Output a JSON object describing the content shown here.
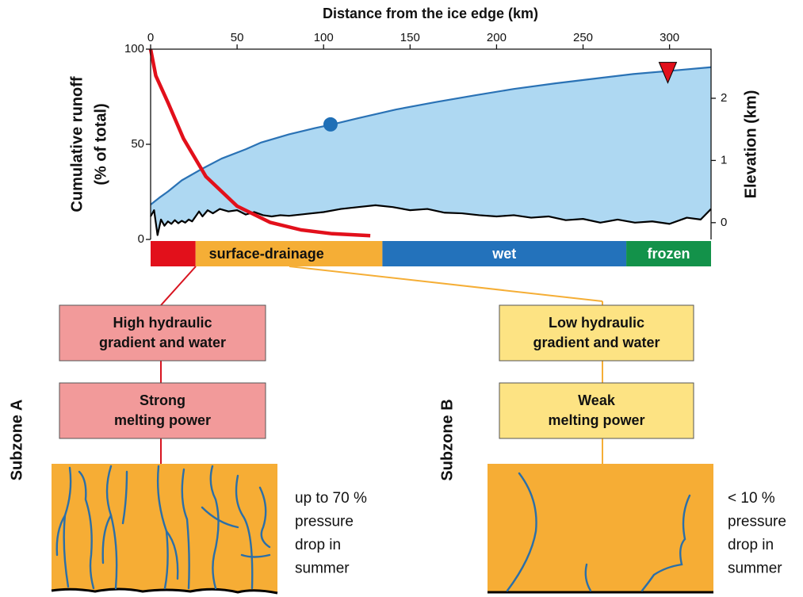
{
  "chart_data": {
    "type": "line",
    "title": "Distance from the ice edge (km)",
    "ylabel": [
      "Cumulative runoff",
      "(% of total)"
    ],
    "y2label": "Elevation (km)",
    "xlim": [
      0,
      324
    ],
    "xticks": [
      0,
      50,
      100,
      150,
      200,
      250,
      300
    ],
    "ylim": [
      0,
      100
    ],
    "yticks": [
      0,
      50,
      100
    ],
    "y2lim": [
      -0.27,
      2.79
    ],
    "y2ticks": [
      0,
      1,
      2
    ],
    "series": [
      {
        "color": "#e2101b",
        "axis": "y",
        "x": [
          0,
          3,
          10,
          19,
          32,
          50,
          69,
          87,
          105,
          127
        ],
        "values": [
          100,
          86,
          72,
          53,
          33,
          17.5,
          9,
          5,
          3,
          2
        ]
      },
      {
        "color": "#2a72b5",
        "fill": "#aed8f2",
        "axis": "y2",
        "x": [
          0,
          5,
          10,
          18,
          30,
          41,
          55,
          64,
          80,
          95,
          105,
          120,
          142,
          165,
          188,
          210,
          234,
          255,
          279,
          300,
          324
        ],
        "values": [
          0.29,
          0.4,
          0.5,
          0.68,
          0.87,
          1.03,
          1.18,
          1.29,
          1.42,
          1.52,
          1.58,
          1.68,
          1.82,
          1.94,
          2.05,
          2.15,
          2.24,
          2.31,
          2.39,
          2.44,
          2.5
        ]
      },
      {
        "color": "#000000",
        "axis": "y2",
        "x": [
          0,
          2,
          4,
          6,
          8,
          10,
          12,
          14,
          16,
          18,
          20,
          22,
          24,
          26,
          28,
          30,
          33,
          36,
          40,
          45,
          50,
          55,
          60,
          65,
          70,
          75,
          80,
          90,
          100,
          110,
          120,
          130,
          140,
          150,
          160,
          170,
          180,
          190,
          200,
          210,
          220,
          230,
          240,
          250,
          260,
          270,
          280,
          290,
          300,
          310,
          318,
          324
        ],
        "values": [
          0.1,
          0.2,
          -0.2,
          0.05,
          -0.05,
          0.02,
          -0.02,
          0.04,
          -0.01,
          0.03,
          0.0,
          0.05,
          0.02,
          0.1,
          0.18,
          0.1,
          0.2,
          0.15,
          0.22,
          0.18,
          0.2,
          0.13,
          0.17,
          0.12,
          0.1,
          0.12,
          0.11,
          0.14,
          0.17,
          0.22,
          0.25,
          0.28,
          0.25,
          0.2,
          0.22,
          0.16,
          0.15,
          0.12,
          0.1,
          0.12,
          0.08,
          0.1,
          0.04,
          0.06,
          0.0,
          0.05,
          0.0,
          0.02,
          -0.02,
          0.08,
          0.05,
          0.22
        ]
      }
    ],
    "markers": [
      {
        "shape": "circle",
        "color": "#1f6fb6",
        "x": 104,
        "value": 1.58
      },
      {
        "shape": "triangle-down",
        "color": "#e2101b",
        "x": 299,
        "value": 2.4
      }
    ],
    "zones": [
      {
        "start": 0,
        "end": 26,
        "color": "#e2101b"
      },
      {
        "label": "surface-drainage",
        "label_color": "#111111",
        "start": 26,
        "end": 134,
        "color": "#f5ae36"
      },
      {
        "label": "wet",
        "label_color": "#ffffff",
        "start": 134,
        "end": 275,
        "color": "#2372bb"
      },
      {
        "label": "frozen",
        "label_color": "#ffffff",
        "start": 275,
        "end": 324,
        "color": "#13924a"
      }
    ]
  },
  "subzones": [
    {
      "label": "Subzone A",
      "box_color": "#f29a9a",
      "line_color": "#d81420",
      "boxes": [
        [
          "High hydraulic",
          "gradient and water"
        ],
        [
          "Strong",
          "melting power"
        ]
      ],
      "note": [
        "up to 70 %",
        "pressure",
        "drop in",
        "summer"
      ]
    },
    {
      "label": "Subzone B",
      "box_color": "#fde383",
      "line_color": "#f5ae36",
      "boxes": [
        [
          "Low hydraulic",
          "gradient and water"
        ],
        [
          "Weak",
          "melting power"
        ]
      ],
      "note": [
        "< 10 %",
        "pressure",
        "drop in",
        "summer"
      ]
    }
  ]
}
